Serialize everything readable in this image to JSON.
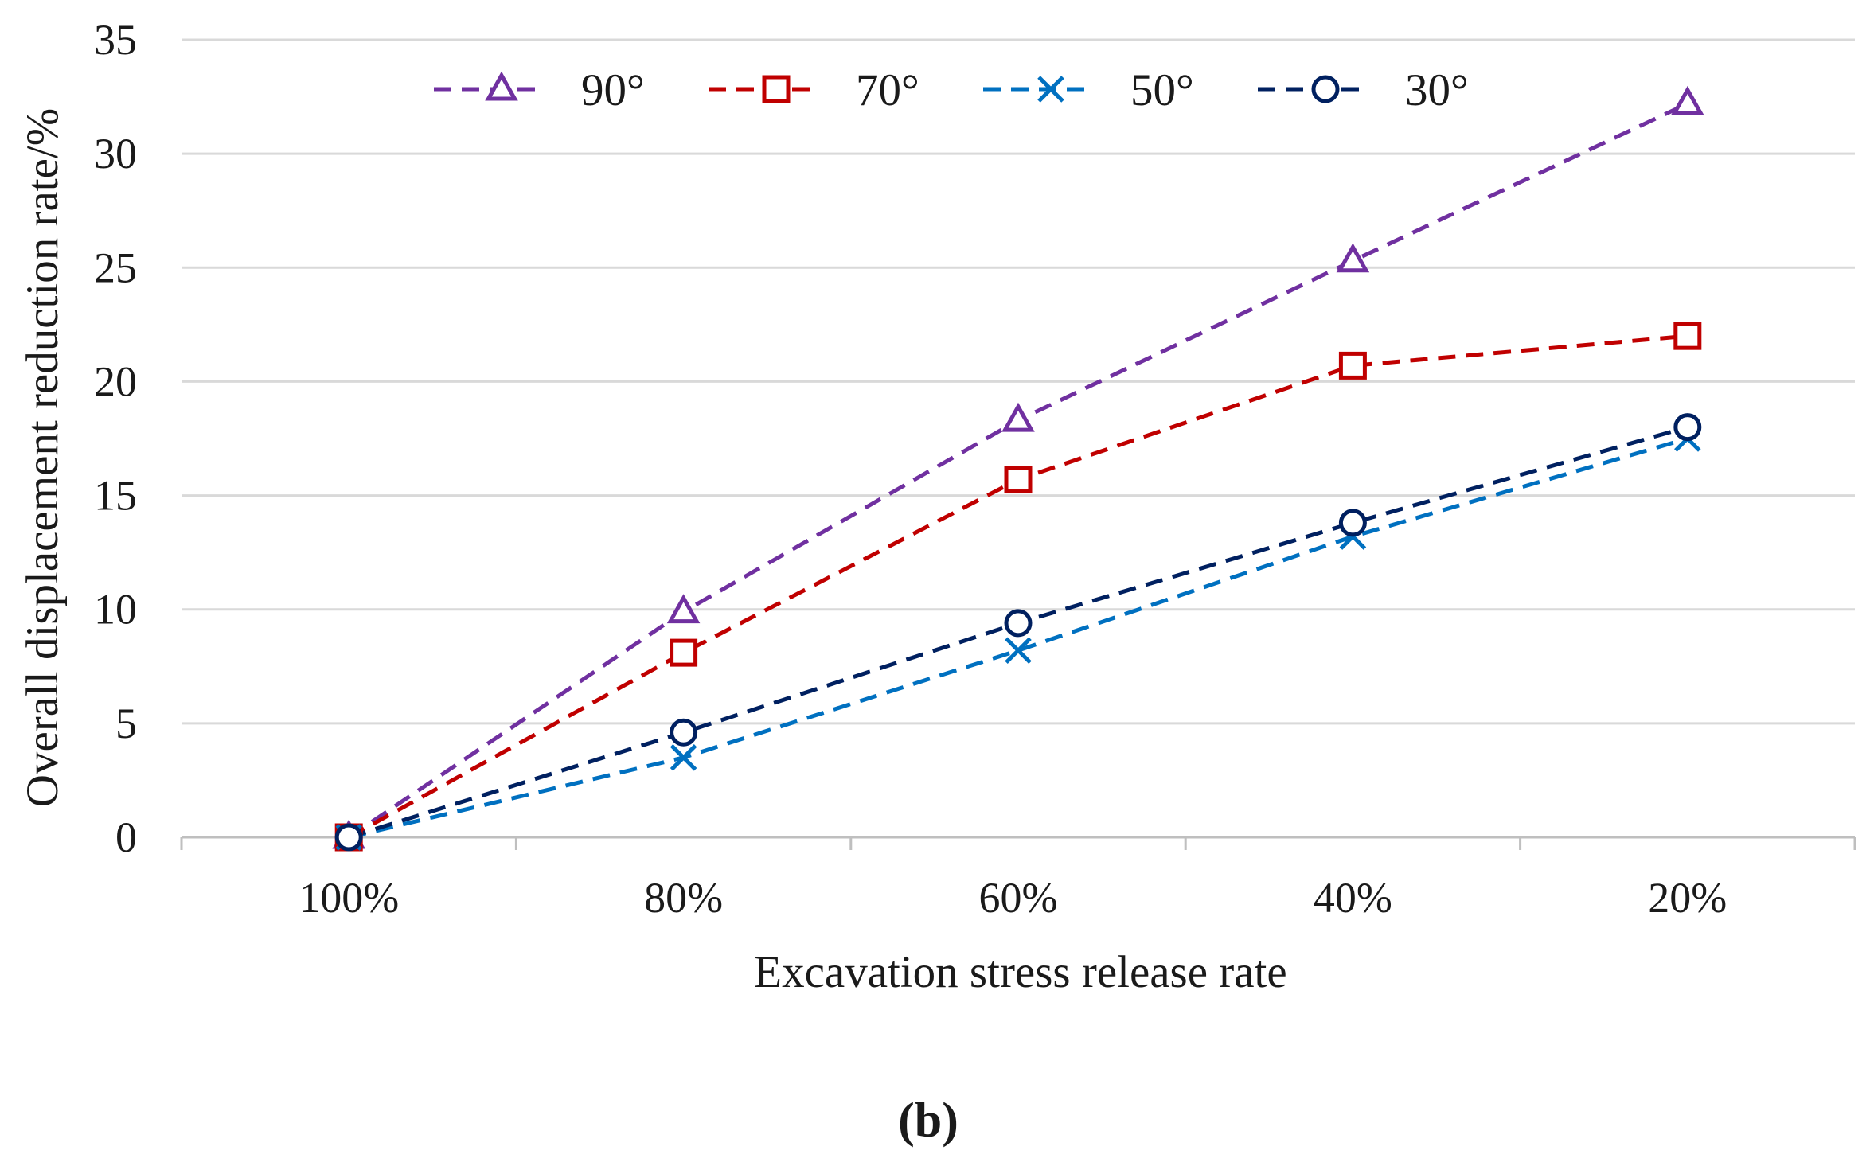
{
  "chart_data": {
    "type": "line",
    "title": "",
    "xlabel": "Excavation stress release rate",
    "ylabel": "Overall displacement reduction rate/%",
    "categories": [
      "100%",
      "80%",
      "60%",
      "40%",
      "20%"
    ],
    "y_ticks": [
      "0",
      "5",
      "10",
      "15",
      "20",
      "25",
      "30",
      "35"
    ],
    "ylim": [
      0,
      35
    ],
    "grid": "horizontal",
    "legend_position": "top",
    "series": [
      {
        "name": "90°",
        "marker": "triangle",
        "color": "#7030a0",
        "values": [
          0,
          9.9,
          18.3,
          25.3,
          32.2
        ]
      },
      {
        "name": "70°",
        "marker": "square",
        "color": "#c00000",
        "values": [
          0,
          8.1,
          15.7,
          20.7,
          22.0
        ]
      },
      {
        "name": "50°",
        "marker": "x",
        "color": "#0070c0",
        "values": [
          0,
          3.5,
          8.2,
          13.2,
          17.5
        ]
      },
      {
        "name": "30°",
        "marker": "circle",
        "color": "#002060",
        "values": [
          0,
          4.6,
          9.4,
          13.8,
          18.0
        ]
      }
    ],
    "panel_label": "(b)"
  }
}
